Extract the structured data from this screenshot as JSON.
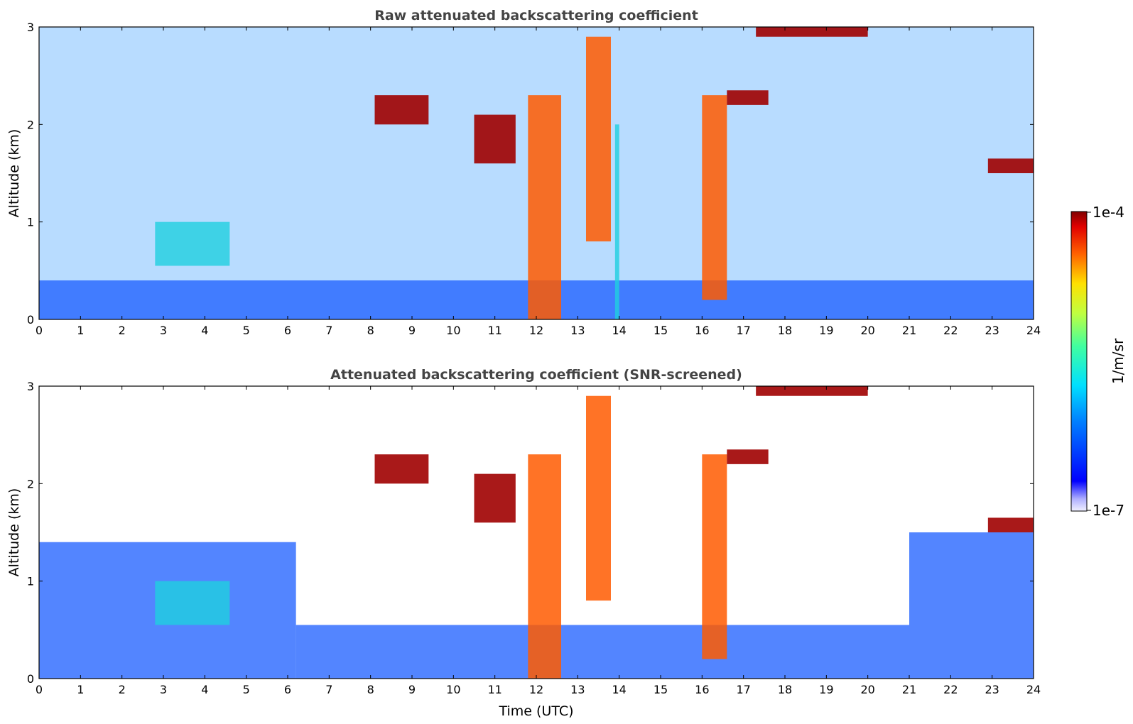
{
  "chart_data": [
    {
      "type": "heatmap",
      "title": "Raw attenuated backscattering coefficient",
      "xlabel": "",
      "ylabel": "Altitude (km)",
      "xlim": [
        0,
        24
      ],
      "ylim": [
        0,
        3
      ],
      "xticks": [
        "0",
        "1",
        "2",
        "3",
        "4",
        "5",
        "6",
        "7",
        "8",
        "9",
        "10",
        "11",
        "12",
        "13",
        "14",
        "15",
        "16",
        "17",
        "18",
        "19",
        "20",
        "21",
        "22",
        "23",
        "24"
      ],
      "yticks": [
        "0",
        "1",
        "2",
        "3"
      ],
      "color_scale": {
        "min": "1e-7",
        "max": "1e-4",
        "scale": "log",
        "colormap": "jet",
        "unit": "1/m/sr"
      },
      "features": [
        {
          "x_range": [
            0.0,
            24.0
          ],
          "alt_range": [
            0.0,
            0.4
          ],
          "level": "low"
        },
        {
          "x_range": [
            2.8,
            4.6
          ],
          "alt_range": [
            0.55,
            1.0
          ],
          "level": "moderate"
        },
        {
          "x_range": [
            11.8,
            12.6
          ],
          "alt_range": [
            0.0,
            2.3
          ],
          "level": "high"
        },
        {
          "x_range": [
            13.2,
            13.8
          ],
          "alt_range": [
            0.8,
            2.9
          ],
          "level": "high"
        },
        {
          "x_range": [
            13.9,
            14.0
          ],
          "alt_range": [
            0.0,
            2.0
          ],
          "level": "moderate"
        },
        {
          "x_range": [
            16.0,
            16.6
          ],
          "alt_range": [
            0.2,
            2.3
          ],
          "level": "high"
        },
        {
          "x_range": [
            16.6,
            17.6
          ],
          "alt_range": [
            2.2,
            2.35
          ],
          "level": "very-high"
        },
        {
          "x_range": [
            10.5,
            11.5
          ],
          "alt_range": [
            1.6,
            2.1
          ],
          "level": "very-high"
        },
        {
          "x_range": [
            8.1,
            9.4
          ],
          "alt_range": [
            2.0,
            2.3
          ],
          "level": "very-high"
        },
        {
          "x_range": [
            17.3,
            20.0
          ],
          "alt_range": [
            2.9,
            3.0
          ],
          "level": "very-high"
        },
        {
          "x_range": [
            22.9,
            24.0
          ],
          "alt_range": [
            1.5,
            1.65
          ],
          "level": "very-high"
        }
      ]
    },
    {
      "type": "heatmap",
      "title": "Attenuated backscattering coefficient (SNR-screened)",
      "xlabel": "Time (UTC)",
      "ylabel": "Altitude (km)",
      "xlim": [
        0,
        24
      ],
      "ylim": [
        0,
        3
      ],
      "xticks": [
        "0",
        "1",
        "2",
        "3",
        "4",
        "5",
        "6",
        "7",
        "8",
        "9",
        "10",
        "11",
        "12",
        "13",
        "14",
        "15",
        "16",
        "17",
        "18",
        "19",
        "20",
        "21",
        "22",
        "23",
        "24"
      ],
      "yticks": [
        "0",
        "1",
        "2",
        "3"
      ],
      "color_scale": {
        "min": "1e-7",
        "max": "1e-4",
        "scale": "log",
        "colormap": "jet",
        "unit": "1/m/sr"
      },
      "features": [
        {
          "x_range": [
            0.0,
            6.2
          ],
          "alt_range": [
            0.0,
            1.4
          ],
          "level": "low"
        },
        {
          "x_range": [
            6.2,
            21.0
          ],
          "alt_range": [
            0.0,
            0.55
          ],
          "level": "low"
        },
        {
          "x_range": [
            21.0,
            24.0
          ],
          "alt_range": [
            0.0,
            1.5
          ],
          "level": "low"
        },
        {
          "x_range": [
            2.8,
            4.6
          ],
          "alt_range": [
            0.55,
            1.0
          ],
          "level": "moderate"
        },
        {
          "x_range": [
            11.8,
            12.6
          ],
          "alt_range": [
            0.0,
            2.3
          ],
          "level": "high"
        },
        {
          "x_range": [
            13.2,
            13.8
          ],
          "alt_range": [
            0.8,
            2.9
          ],
          "level": "high"
        },
        {
          "x_range": [
            16.0,
            16.6
          ],
          "alt_range": [
            0.2,
            2.3
          ],
          "level": "high"
        },
        {
          "x_range": [
            16.6,
            17.6
          ],
          "alt_range": [
            2.2,
            2.35
          ],
          "level": "very-high"
        },
        {
          "x_range": [
            10.5,
            11.5
          ],
          "alt_range": [
            1.6,
            2.1
          ],
          "level": "very-high"
        },
        {
          "x_range": [
            8.1,
            9.4
          ],
          "alt_range": [
            2.0,
            2.3
          ],
          "level": "very-high"
        },
        {
          "x_range": [
            17.3,
            20.0
          ],
          "alt_range": [
            2.9,
            3.0
          ],
          "level": "very-high"
        },
        {
          "x_range": [
            22.9,
            24.0
          ],
          "alt_range": [
            1.5,
            1.65
          ],
          "level": "very-high"
        }
      ]
    }
  ],
  "colorbar": {
    "label": "1/m/sr",
    "max_label": "1e-4",
    "min_label": "1e-7",
    "colormap": "jet"
  }
}
